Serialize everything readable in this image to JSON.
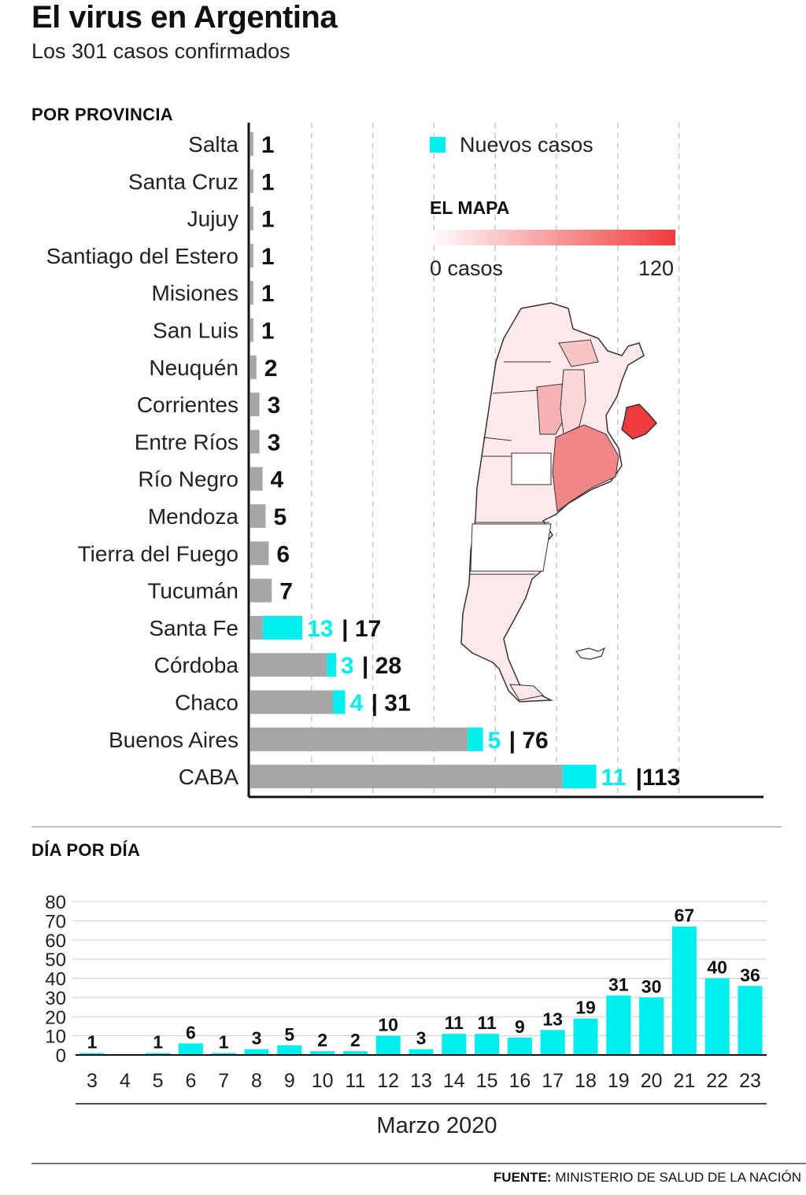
{
  "header": {
    "title": "El virus en Argentina",
    "subtitle": "Los 301 casos confirmados"
  },
  "sections": {
    "province": "POR PROVINCIA",
    "daily": "DÍA POR DÍA"
  },
  "legend": {
    "new_cases": "Nuevos casos"
  },
  "map": {
    "title": "EL MAPA",
    "scale_min_label": "0 casos",
    "scale_max_label": "120",
    "scale_min": 0,
    "scale_max": 120,
    "colors": {
      "low": "#ffffff",
      "high": "#ef3b3b"
    }
  },
  "colors": {
    "prior": "#a6a6a6",
    "new": "#00f0f0",
    "grid": "#c8c8c8",
    "axis": "#111111"
  },
  "source": {
    "label": "FUENTE:",
    "text": "MINISTERIO DE SALUD DE LA NACIÓN"
  },
  "chart_data": [
    {
      "type": "bar",
      "orientation": "horizontal",
      "stacked": true,
      "title": "POR PROVINCIA",
      "xlim": [
        0,
        150
      ],
      "grid": true,
      "categories": [
        "Salta",
        "Santa Cruz",
        "Jujuy",
        "Santiago del Estero",
        "Misiones",
        "San Luis",
        "Neuquén",
        "Corrientes",
        "Entre Ríos",
        "Río Negro",
        "Mendoza",
        "Tierra del Fuego",
        "Tucumán",
        "Santa Fe",
        "Córdoba",
        "Chaco",
        "Buenos Aires",
        "CABA"
      ],
      "series": [
        {
          "name": "",
          "values": [
            1,
            1,
            1,
            1,
            1,
            1,
            2,
            3,
            3,
            4,
            5,
            6,
            7,
            4,
            25,
            27,
            71,
            102
          ]
        },
        {
          "name": "Nuevos casos",
          "values": [
            0,
            0,
            0,
            0,
            0,
            0,
            0,
            0,
            0,
            0,
            0,
            0,
            0,
            13,
            3,
            4,
            5,
            11
          ]
        }
      ],
      "totals": [
        1,
        1,
        1,
        1,
        1,
        1,
        2,
        3,
        3,
        4,
        5,
        6,
        7,
        17,
        28,
        31,
        76,
        113
      ],
      "total_labels": [
        "1",
        "1",
        "1",
        "1",
        "1",
        "1",
        "2",
        "3",
        "3",
        "4",
        "5",
        "6",
        "7",
        "| 17",
        "| 28",
        "| 31",
        "| 76",
        "|113"
      ],
      "new_labels": [
        "",
        "",
        "",
        "",
        "",
        "",
        "",
        "",
        "",
        "",
        "",
        "",
        "",
        "13",
        "3",
        "4",
        "5",
        "11"
      ]
    },
    {
      "type": "bar",
      "title": "DÍA POR DÍA",
      "xlabel": "Marzo 2020",
      "ylim": [
        0,
        80
      ],
      "yticks": [
        "0",
        "10",
        "20",
        "30",
        "40",
        "50",
        "60",
        "70",
        "80"
      ],
      "categories": [
        "3",
        "4",
        "5",
        "6",
        "7",
        "8",
        "9",
        "10",
        "11",
        "12",
        "13",
        "14",
        "15",
        "16",
        "17",
        "18",
        "19",
        "20",
        "21",
        "22",
        "23"
      ],
      "values": [
        1,
        0,
        1,
        6,
        1,
        3,
        5,
        2,
        2,
        10,
        3,
        11,
        11,
        9,
        13,
        19,
        31,
        30,
        67,
        40,
        36
      ],
      "value_labels": [
        "1",
        "",
        "1",
        "6",
        "1",
        "3",
        "5",
        "2",
        "2",
        "10",
        "3",
        "11",
        "11",
        "9",
        "13",
        "19",
        "31",
        "30",
        "67",
        "40",
        "36"
      ]
    }
  ]
}
